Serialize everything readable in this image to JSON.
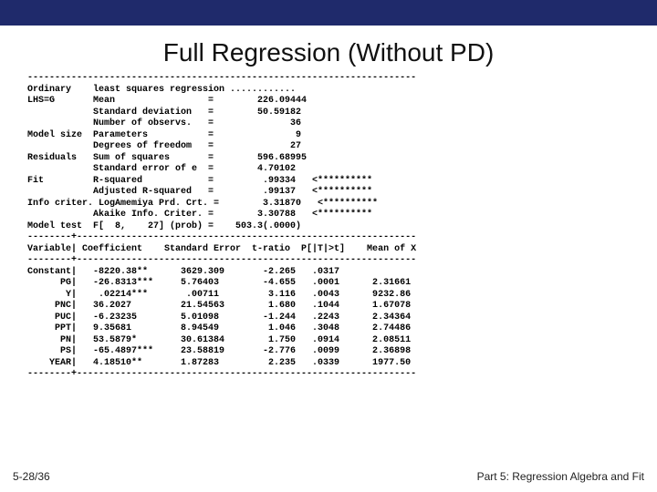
{
  "title": "Full Regression (Without PD)",
  "hr": "-----------------------------------------------------------------------",
  "hr2": "--------+--------------------------------------------------------------",
  "model": {
    "r0": "Ordinary    least squares regression ............",
    "r1": "LHS=G       Mean                 =        226.09444",
    "r2": "            Standard deviation   =        50.59182",
    "r3": "            Number of observs.   =              36",
    "r4": "Model size  Parameters           =               9",
    "r5": "            Degrees of freedom   =              27",
    "r6": "Residuals   Sum of squares       =        596.68995",
    "r7": "            Standard error of e  =        4.70102",
    "r8": "Fit         R-squared            =         .99334   <**********",
    "r9": "            Adjusted R-squared   =         .99137   <**********",
    "r10": "Info criter. LogAmemiya Prd. Crt. =        3.31870   <**********",
    "r11": "            Akaike Info. Criter. =        3.30788   <**********",
    "r12": "Model test  F[  8,    27] (prob) =    503.3(.0000)"
  },
  "header": "Variable| Coefficient    Standard Error  t-ratio  P[|T|>t]    Mean of X",
  "rows": {
    "r0": "Constant|   -8220.38**      3629.309       -2.265   .0317",
    "r1": "      PG|   -26.8313***     5.76403        -4.655   .0001      2.31661",
    "r2": "       Y|    .02214***       .00711         3.116   .0043      9232.86",
    "r3": "     PNC|   36.2027         21.54563        1.680   .1044      1.67078",
    "r4": "     PUC|   -6.23235        5.01098        -1.244   .2243      2.34364",
    "r5": "     PPT|   9.35681         8.94549         1.046   .3048      2.74486",
    "r6": "      PN|   53.5879*        30.61384        1.750   .0914      2.08511",
    "r7": "      PS|   -65.4897***     23.58819       -2.776   .0099      2.36898",
    "r8": "    YEAR|   4.18510**       1.87283         2.235   .0339      1977.50"
  },
  "footer": {
    "left": "5-28/36",
    "right": "Part 5: Regression Algebra and Fit"
  }
}
